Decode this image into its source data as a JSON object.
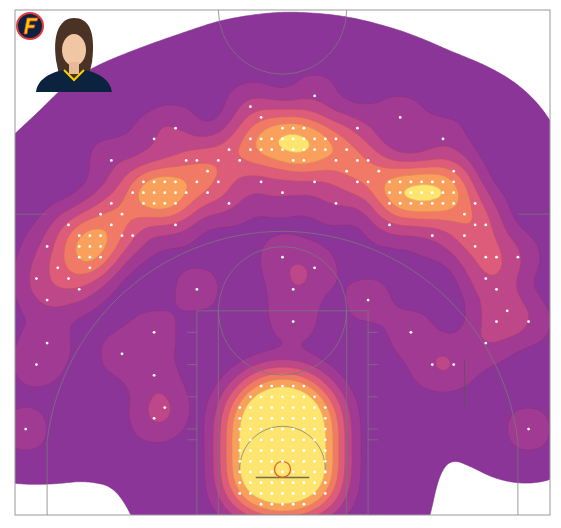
{
  "chart_data": {
    "type": "density",
    "color": "#ffffff",
    "tick_labels": false,
    "xlim": [
      -25,
      25
    ],
    "ylim": [
      0,
      47
    ],
    "x": [
      -2,
      -1,
      0,
      1,
      2,
      -4,
      -3,
      -2,
      -1,
      0,
      1,
      2,
      3,
      4,
      -4,
      -3,
      -2,
      -1,
      0,
      1,
      2,
      3,
      4,
      -4,
      -3,
      -2,
      -1,
      0,
      1,
      2,
      3,
      4,
      -4,
      -3,
      -2,
      -1,
      0,
      1,
      2,
      3,
      4,
      -4,
      -3,
      -2,
      -1,
      0,
      1,
      2,
      3,
      4,
      -4,
      -3,
      -2,
      -1,
      0,
      1,
      2,
      3,
      4,
      -4,
      -3,
      -2,
      -1,
      0,
      1,
      2,
      3,
      4,
      -4,
      -3,
      -2,
      -1,
      0,
      1,
      2,
      3,
      4,
      -4,
      -3,
      -2,
      -1,
      0,
      1,
      2,
      3,
      4,
      -3,
      -2,
      -1,
      0,
      1,
      2,
      3,
      -2,
      -1,
      0,
      1,
      2,
      1,
      1,
      0,
      -11,
      -12,
      3,
      -12,
      14,
      -19,
      -18,
      -17,
      -19,
      -18,
      -17,
      -19,
      -18,
      -17,
      -18,
      -13,
      -12,
      -11,
      -10,
      -13,
      -12,
      -11,
      -10,
      -13,
      -12,
      -11,
      -10,
      -14,
      -9,
      -3,
      -2,
      -1,
      0,
      1,
      2,
      3,
      4,
      -3,
      -2,
      -1,
      0,
      1,
      2,
      3,
      4,
      1,
      2,
      1,
      2,
      10,
      11,
      12,
      13,
      14,
      15,
      16,
      10,
      11,
      12,
      13,
      14,
      15,
      16,
      10,
      11,
      12,
      13,
      14,
      15,
      16,
      -16,
      -15,
      -17,
      -16,
      -15,
      -20,
      -21,
      -20,
      -19,
      -8,
      -7,
      -6,
      -8,
      -6,
      -5,
      -7,
      -9,
      -4,
      5,
      6,
      7,
      8,
      6,
      7,
      9,
      8,
      5,
      17,
      18,
      18,
      19,
      17,
      19,
      20,
      18,
      19,
      20,
      21,
      20,
      -22,
      -23,
      -22,
      -23,
      -22,
      -12,
      -10,
      -3,
      3,
      11,
      15,
      22,
      23,
      -14,
      14,
      -10,
      10,
      -5,
      0,
      5,
      0,
      -2,
      3,
      19,
      -24,
      23,
      16,
      -15,
      -12,
      12,
      -8,
      8,
      -2,
      7,
      -16,
      16
    ],
    "y": [
      1,
      1,
      1,
      1,
      1,
      2,
      2,
      2,
      2,
      2,
      2,
      2,
      2,
      2,
      3,
      3,
      3,
      3,
      3,
      3,
      3,
      3,
      3,
      4,
      4,
      4,
      4,
      4,
      4,
      4,
      4,
      4,
      5,
      5,
      5,
      5,
      5,
      5,
      5,
      5,
      5,
      6,
      6,
      6,
      6,
      6,
      6,
      6,
      6,
      6,
      7,
      7,
      7,
      7,
      7,
      7,
      7,
      7,
      7,
      8,
      8,
      8,
      8,
      8,
      8,
      8,
      8,
      8,
      9,
      9,
      9,
      9,
      9,
      9,
      9,
      9,
      9,
      10,
      10,
      10,
      10,
      10,
      10,
      10,
      10,
      10,
      11,
      11,
      11,
      11,
      11,
      11,
      11,
      12,
      12,
      12,
      12,
      12,
      18,
      21,
      24,
      10,
      9,
      23,
      13,
      14,
      24,
      24,
      24,
      25,
      25,
      25,
      26,
      26,
      26,
      23,
      29,
      29,
      29,
      29,
      30,
      30,
      30,
      30,
      31,
      31,
      31,
      31,
      30,
      30,
      34,
      34,
      34,
      34,
      34,
      34,
      34,
      34,
      35,
      35,
      35,
      35,
      35,
      35,
      35,
      35,
      33,
      33,
      36,
      36,
      29,
      29,
      29,
      29,
      29,
      29,
      29,
      30,
      30,
      30,
      30,
      30,
      30,
      30,
      31,
      31,
      31,
      31,
      31,
      31,
      31,
      27,
      28,
      28,
      29,
      26,
      22,
      23,
      27,
      21,
      31,
      32,
      33,
      33,
      31,
      34,
      30,
      33,
      33,
      33,
      32,
      33,
      31,
      34,
      31,
      32,
      33,
      35,
      28,
      27,
      25,
      24,
      26,
      22,
      24,
      29,
      27,
      21,
      19,
      18,
      20,
      22,
      16,
      14,
      25,
      35,
      36,
      38,
      39,
      37,
      35,
      24,
      18,
      26,
      26,
      27,
      27,
      29,
      30,
      29,
      36,
      31,
      31,
      16,
      8,
      8,
      14,
      15,
      17,
      17,
      21,
      20,
      37,
      36,
      33,
      32
    ]
  }
}
